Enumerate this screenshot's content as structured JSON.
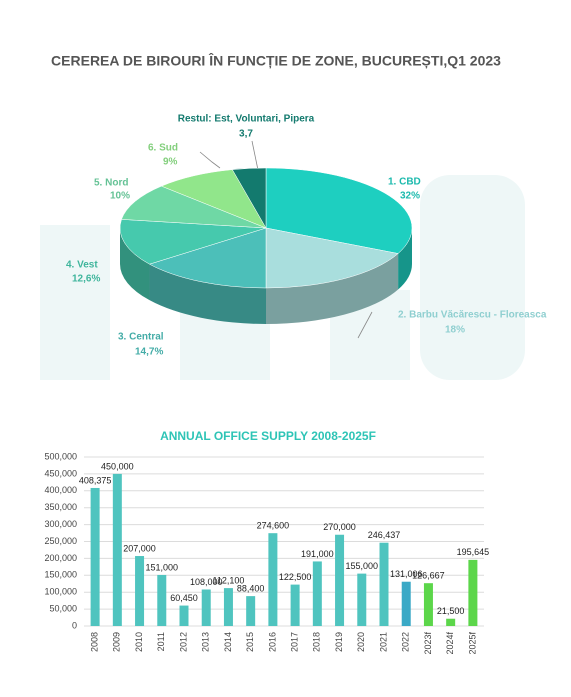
{
  "chart_data": [
    {
      "type": "pie3d",
      "title": "CEREREA DE BIROURI ÎN FUNCȚIE DE ZONE, BUCUREȘTI,Q1 2023",
      "categories": [
        "1. CBD",
        "2. Barbu Văcărescu - Floreasca",
        "3. Central",
        "4. Vest",
        "5. Nord",
        "6. Sud",
        "Restul: Est, Voluntari, Pipera"
      ],
      "values": [
        32,
        18,
        14.7,
        12.6,
        10,
        9,
        3.7
      ],
      "value_labels": [
        "32%",
        "18%",
        "14,7%",
        "12,6%",
        "10%",
        "9%",
        "3,7"
      ],
      "colors": [
        "#1ecfc0",
        "#a9dedd",
        "#4cbfb9",
        "#46c9ad",
        "#6fd8a5",
        "#91e68b",
        "#137a6e"
      ]
    },
    {
      "type": "bar",
      "title": "ANNUAL OFFICE SUPPLY 2008-2025F",
      "categories": [
        "2008",
        "2009",
        "2010",
        "2011",
        "2012",
        "2013",
        "2014",
        "2015",
        "2016",
        "2017",
        "2018",
        "2019",
        "2020",
        "2021",
        "2022",
        "2023f",
        "2024f",
        "2025f"
      ],
      "values": [
        408375,
        450000,
        207000,
        151000,
        60450,
        108000,
        112100,
        88400,
        274600,
        122500,
        191000,
        270000,
        155000,
        246437,
        131006,
        126667,
        21500,
        195645
      ],
      "value_labels": [
        "408,375",
        "450,000",
        "207,000",
        "151,000",
        "60,450",
        "108,000",
        "112,100",
        "88,400",
        "274,600",
        "122,500",
        "191,000",
        "270,000",
        "155,000",
        "246,437",
        "131,006",
        "126,667",
        "21,500",
        "195,645"
      ],
      "colors": [
        "#4fc4bf",
        "#4fc4bf",
        "#4fc4bf",
        "#4fc4bf",
        "#4fc4bf",
        "#4fc4bf",
        "#4fc4bf",
        "#4fc4bf",
        "#4fc4bf",
        "#4fc4bf",
        "#4fc4bf",
        "#4fc4bf",
        "#4fc4bf",
        "#4fc4bf",
        "#3aa9c6",
        "#5cd64a",
        "#5cd64a",
        "#5cd64a"
      ],
      "ylim": [
        0,
        500000
      ],
      "yticks": [
        0,
        {
          "value": 50000,
          "label": "50,000"
        },
        {
          "value": 100000,
          "label": "100,000"
        },
        {
          "value": 150000,
          "label": "150,000"
        },
        {
          "value": 200000,
          "label": "200,000"
        },
        {
          "value": 250000,
          "label": "250,000"
        },
        {
          "value": 300000,
          "label": "300,000"
        },
        {
          "value": 350000,
          "label": "350,000"
        },
        {
          "value": 400000,
          "label": "400,000"
        },
        {
          "value": 450000,
          "label": "450,000"
        },
        {
          "value": 500000,
          "label": "500,000"
        }
      ],
      "grid": true
    }
  ]
}
